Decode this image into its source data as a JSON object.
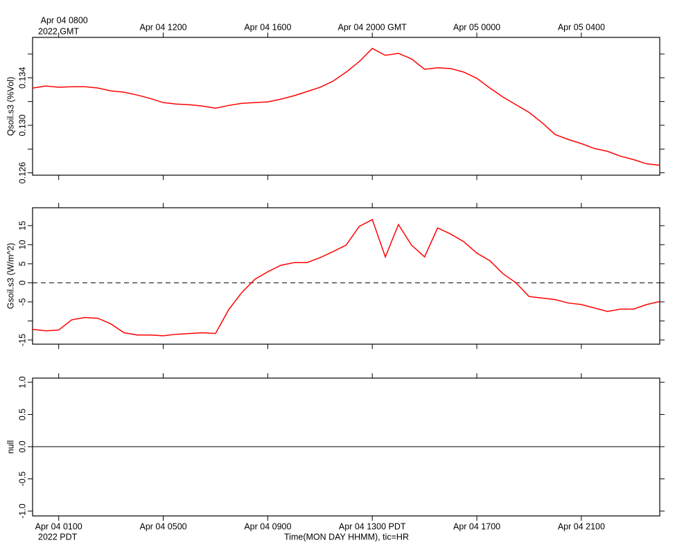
{
  "chart_data": [
    {
      "type": "line",
      "ylabel": "Qsoil.s3 (%Vol)",
      "xlim": [
        "2022-04-04T07:00Z",
        "2022-04-05T07:00Z"
      ],
      "x2ticks": [
        {
          "value": "2022-04-04T08:00Z",
          "label": "Apr 04 0800"
        },
        {
          "value": "2022-04-04T12:00Z",
          "label": "Apr 04 1200"
        },
        {
          "value": "2022-04-04T16:00Z",
          "label": "Apr 04 1600"
        },
        {
          "value": "2022-04-04T20:00Z",
          "label": "Apr 04 2000 GMT"
        },
        {
          "value": "2022-04-05T00:00Z",
          "label": "Apr 05 0000"
        },
        {
          "value": "2022-04-05T04:00Z",
          "label": "Apr 05 0400"
        }
      ],
      "x2_note": "2022 GMT",
      "ylim": [
        0.1258,
        0.1374
      ],
      "yticks": [
        0.126,
        {
          "value": 0.13,
          "label": "0.130"
        },
        0.134
      ],
      "minor_yticks": [
        0.128,
        0.132,
        0.136
      ],
      "x": [
        "2022-04-04T07:00Z",
        "2022-04-04T07:30Z",
        "2022-04-04T08:00Z",
        "2022-04-04T08:30Z",
        "2022-04-04T09:00Z",
        "2022-04-04T09:30Z",
        "2022-04-04T10:00Z",
        "2022-04-04T10:30Z",
        "2022-04-04T11:00Z",
        "2022-04-04T11:30Z",
        "2022-04-04T12:00Z",
        "2022-04-04T12:30Z",
        "2022-04-04T13:00Z",
        "2022-04-04T13:30Z",
        "2022-04-04T14:00Z",
        "2022-04-04T14:30Z",
        "2022-04-04T15:00Z",
        "2022-04-04T15:30Z",
        "2022-04-04T16:00Z",
        "2022-04-04T16:30Z",
        "2022-04-04T17:00Z",
        "2022-04-04T17:30Z",
        "2022-04-04T18:00Z",
        "2022-04-04T18:30Z",
        "2022-04-04T19:00Z",
        "2022-04-04T19:30Z",
        "2022-04-04T20:00Z",
        "2022-04-04T20:30Z",
        "2022-04-04T21:00Z",
        "2022-04-04T21:30Z",
        "2022-04-04T22:00Z",
        "2022-04-04T22:30Z",
        "2022-04-04T23:00Z",
        "2022-04-04T23:30Z",
        "2022-04-05T00:00Z",
        "2022-04-05T00:30Z",
        "2022-04-05T01:00Z",
        "2022-04-05T01:30Z",
        "2022-04-05T02:00Z",
        "2022-04-05T02:30Z",
        "2022-04-05T03:00Z",
        "2022-04-05T03:30Z",
        "2022-04-05T04:00Z",
        "2022-04-05T04:30Z",
        "2022-04-05T05:00Z",
        "2022-04-05T05:30Z",
        "2022-04-05T06:00Z",
        "2022-04-05T06:30Z",
        "2022-04-05T07:00Z"
      ],
      "series": [
        {
          "color": "#ff0000",
          "values": [
            0.13313,
            0.13331,
            0.1332,
            0.13325,
            0.13325,
            0.13314,
            0.1329,
            0.13279,
            0.13255,
            0.13226,
            0.13191,
            0.13179,
            0.13173,
            0.13162,
            0.13144,
            0.13167,
            0.13185,
            0.13191,
            0.13197,
            0.1322,
            0.13249,
            0.13284,
            0.1332,
            0.13372,
            0.13448,
            0.13536,
            0.13647,
            0.13589,
            0.13606,
            0.13559,
            0.13472,
            0.13484,
            0.13478,
            0.13448,
            0.13396,
            0.13314,
            0.13238,
            0.13173,
            0.13109,
            0.13021,
            0.12922,
            0.12881,
            0.12846,
            0.12805,
            0.12781,
            0.1274,
            0.12711,
            0.12676,
            0.12664
          ]
        }
      ]
    },
    {
      "type": "line",
      "ylabel": "Gsoil.s3 (W/m^2)",
      "xlim": [
        "2022-04-04T07:00Z",
        "2022-04-05T07:00Z"
      ],
      "ylim": [
        -16.1,
        19.7
      ],
      "yticks": [
        -15,
        -5,
        0,
        5,
        10,
        15
      ],
      "minor_yticks": [
        -10
      ],
      "zero_line": "dashed",
      "x": [
        "2022-04-04T07:00Z",
        "2022-04-04T07:30Z",
        "2022-04-04T08:00Z",
        "2022-04-04T08:30Z",
        "2022-04-04T09:00Z",
        "2022-04-04T09:30Z",
        "2022-04-04T10:00Z",
        "2022-04-04T10:30Z",
        "2022-04-04T11:00Z",
        "2022-04-04T11:30Z",
        "2022-04-04T12:00Z",
        "2022-04-04T12:30Z",
        "2022-04-04T13:00Z",
        "2022-04-04T13:30Z",
        "2022-04-04T14:00Z",
        "2022-04-04T14:30Z",
        "2022-04-04T15:00Z",
        "2022-04-04T15:30Z",
        "2022-04-04T16:00Z",
        "2022-04-04T16:30Z",
        "2022-04-04T17:00Z",
        "2022-04-04T17:30Z",
        "2022-04-04T18:00Z",
        "2022-04-04T18:30Z",
        "2022-04-04T19:00Z",
        "2022-04-04T19:30Z",
        "2022-04-04T20:00Z",
        "2022-04-04T20:30Z",
        "2022-04-04T21:00Z",
        "2022-04-04T21:30Z",
        "2022-04-04T22:00Z",
        "2022-04-04T22:30Z",
        "2022-04-04T23:00Z",
        "2022-04-04T23:30Z",
        "2022-04-05T00:00Z",
        "2022-04-05T00:30Z",
        "2022-04-05T01:00Z",
        "2022-04-05T01:30Z",
        "2022-04-05T02:00Z",
        "2022-04-05T02:30Z",
        "2022-04-05T03:00Z",
        "2022-04-05T03:30Z",
        "2022-04-05T04:00Z",
        "2022-04-05T04:30Z",
        "2022-04-05T05:00Z",
        "2022-04-05T05:30Z",
        "2022-04-05T06:00Z",
        "2022-04-05T06:30Z",
        "2022-04-05T07:00Z"
      ],
      "series": [
        {
          "color": "#ff0000",
          "values": [
            -12.2,
            -12.6,
            -12.4,
            -9.7,
            -9.1,
            -9.3,
            -10.8,
            -13.1,
            -13.7,
            -13.7,
            -13.9,
            -13.5,
            -13.3,
            -13.1,
            -13.3,
            -7.1,
            -2.6,
            0.9,
            2.9,
            4.6,
            5.3,
            5.3,
            6.6,
            8.2,
            9.9,
            14.8,
            16.6,
            6.8,
            15.3,
            9.9,
            6.8,
            14.4,
            12.8,
            10.8,
            7.8,
            5.8,
            2.4,
            0.0,
            -3.6,
            -4.0,
            -4.4,
            -5.3,
            -5.7,
            -6.6,
            -7.5,
            -6.9,
            -6.9,
            -5.7,
            -4.9
          ]
        }
      ]
    },
    {
      "type": "line",
      "ylabel": "null",
      "xlim": [
        "2022-04-04T07:00Z",
        "2022-04-05T07:00Z"
      ],
      "xticks": [
        {
          "value": "2022-04-04T08:00Z",
          "label": "Apr 04 0100"
        },
        {
          "value": "2022-04-04T12:00Z",
          "label": "Apr 04 0500"
        },
        {
          "value": "2022-04-04T16:00Z",
          "label": "Apr 04 0900"
        },
        {
          "value": "2022-04-04T20:00Z",
          "label": "Apr 04 1300 PDT"
        },
        {
          "value": "2022-04-05T00:00Z",
          "label": "Apr 04 1700"
        },
        {
          "value": "2022-04-05T04:00Z",
          "label": "Apr 04 2100"
        }
      ],
      "x_note": "2022 PDT",
      "xlabel": "Time(MON DAY HHMM), tic=HR",
      "ylim": [
        -1.075,
        1.065
      ],
      "yticks": [
        {
          "value": -1,
          "label": "-1.0"
        },
        -0.5,
        {
          "value": 0,
          "label": "0.0"
        },
        0.5,
        {
          "value": 1,
          "label": "1.0"
        }
      ],
      "zero_line": "solid"
    }
  ]
}
